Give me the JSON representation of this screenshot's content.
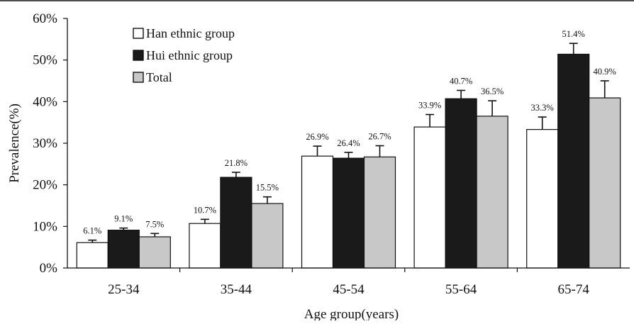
{
  "chart_data": {
    "type": "bar",
    "title": "",
    "xlabel": "Age group(years)",
    "ylabel": "Prevalence(%)",
    "ylim": [
      0,
      60
    ],
    "yticks": [
      "0%",
      "10%",
      "20%",
      "30%",
      "40%",
      "50%",
      "60%"
    ],
    "ytick_values": [
      0,
      10,
      20,
      30,
      40,
      50,
      60
    ],
    "grid": false,
    "legend_position": "top-left",
    "categories": [
      "25-34",
      "35-44",
      "45-54",
      "55-64",
      "65-74"
    ],
    "series": [
      {
        "name": "Han ethnic group",
        "color": "#ffffff",
        "values": [
          6.1,
          10.7,
          26.9,
          33.9,
          33.3
        ],
        "labels": [
          "6.1%",
          "10.7%",
          "26.9%",
          "33.9%",
          "33.3%"
        ],
        "error": [
          0.6,
          1.0,
          2.4,
          3.0,
          3.0
        ]
      },
      {
        "name": "Hui ethnic group",
        "color": "#1a1a1a",
        "values": [
          9.1,
          21.8,
          26.4,
          40.7,
          51.4
        ],
        "labels": [
          "9.1%",
          "21.8%",
          "26.4%",
          "40.7%",
          "51.4%"
        ],
        "error": [
          0.5,
          1.2,
          1.4,
          2.0,
          2.6
        ]
      },
      {
        "name": "Total",
        "color": "#c8c8c8",
        "values": [
          7.5,
          15.5,
          26.7,
          36.5,
          40.9
        ],
        "labels": [
          "7.5%",
          "15.5%",
          "26.7%",
          "36.5%",
          "40.9%"
        ],
        "error": [
          0.8,
          1.6,
          2.7,
          3.7,
          4.1
        ]
      }
    ]
  }
}
